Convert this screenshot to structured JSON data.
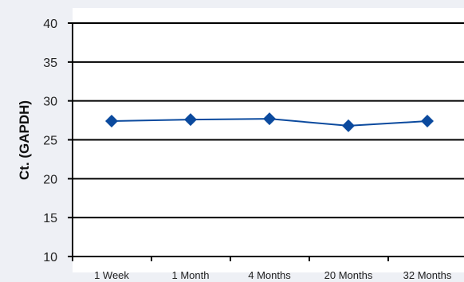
{
  "chart_data": {
    "type": "line",
    "title": "",
    "xlabel": "",
    "ylabel": "Ct. (GAPDH)",
    "categories": [
      "1 Week",
      "1 Month",
      "4 Months",
      "20 Months",
      "32 Months"
    ],
    "series": [
      {
        "values": [
          27.4,
          27.6,
          27.7,
          26.8,
          27.4
        ],
        "color": "#0b4a9e",
        "marker": "diamond"
      }
    ],
    "ylim": [
      10,
      40
    ],
    "yticks": [
      10,
      15,
      20,
      25,
      30,
      35,
      40
    ],
    "grid": true,
    "legend": "none"
  }
}
